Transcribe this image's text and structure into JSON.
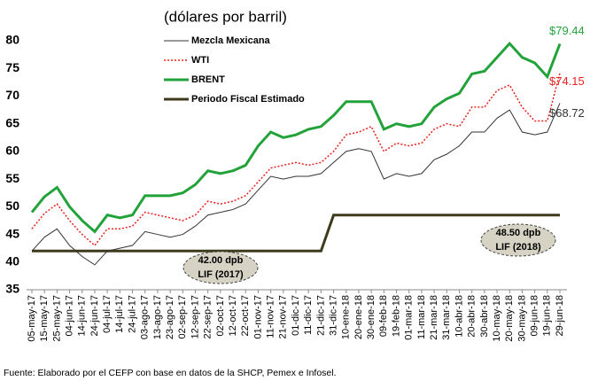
{
  "chart_data": {
    "type": "line",
    "subtitle": "(dólares por barril)",
    "source": "Fuente: Elaborado por el CEFP con base en datos de la SHCP, Pemex e Infosel.",
    "categories": [
      "05-may-17",
      "15-may-17",
      "25-may-17",
      "04-jun-17",
      "14-jun-17",
      "24-jun-17",
      "04-jul-17",
      "14-jul-17",
      "24-jul-17",
      "03-ago-17",
      "13-ago-17",
      "23-ago-17",
      "02-sep-17",
      "12-sep-17",
      "22-sep-17",
      "02-oct-17",
      "12-oct-17",
      "22-oct-17",
      "01-nov-17",
      "11-nov-17",
      "21-nov-17",
      "01-dic-17",
      "11-dic-17",
      "21-dic-17",
      "31-dic-17",
      "10-ene-18",
      "20-ene-18",
      "30-ene-18",
      "09-feb-18",
      "19-feb-18",
      "01-mar-18",
      "11-mar-18",
      "21-mar-18",
      "31-mar-18",
      "10-abr-18",
      "20-abr-18",
      "30-abr-18",
      "10-may-18",
      "20-may-18",
      "30-may-18",
      "09-jun-18",
      "19-jun-18",
      "29-jun-18"
    ],
    "series": [
      {
        "name": "Periodo Fiscal Estimado",
        "color": "#3d3b1c",
        "line_width": 3,
        "dash": "solid",
        "values": [
          42,
          42,
          42,
          42,
          42,
          42,
          42,
          42,
          42,
          42,
          42,
          42,
          42,
          42,
          42,
          42,
          42,
          42,
          42,
          42,
          42,
          42,
          42,
          42,
          48.5,
          48.5,
          48.5,
          48.5,
          48.5,
          48.5,
          48.5,
          48.5,
          48.5,
          48.5,
          48.5,
          48.5,
          48.5,
          48.5,
          48.5,
          48.5,
          48.5,
          48.5,
          48.5
        ]
      },
      {
        "name": "Mezcla Mexicana",
        "color": "#333333",
        "line_width": 1,
        "dash": "solid",
        "values": [
          42,
          44.5,
          46,
          43,
          41,
          39.5,
          42,
          42.5,
          43,
          45.5,
          45,
          44.5,
          45,
          46.5,
          48.5,
          49,
          49.5,
          50.5,
          53,
          55.5,
          55,
          55.5,
          55.5,
          56,
          58,
          60,
          60.5,
          60,
          55,
          56,
          55.5,
          56,
          58.5,
          59.5,
          61,
          63.5,
          63.5,
          66,
          67.5,
          63.5,
          63,
          63.5,
          68.72
        ],
        "value_labels": [
          null,
          null,
          null,
          null,
          null,
          null,
          null,
          null,
          null,
          null,
          null,
          null,
          null,
          null,
          null,
          null,
          null,
          null,
          null,
          null,
          null,
          null,
          null,
          null,
          null,
          null,
          null,
          null,
          null,
          null,
          null,
          null,
          null,
          null,
          null,
          null,
          null,
          null,
          null,
          null,
          null,
          null,
          "$68.72"
        ]
      },
      {
        "name": "WTI",
        "color": "#e8201c",
        "line_width": 1.5,
        "dash": "dotted",
        "values": [
          46,
          48.8,
          50.5,
          47.5,
          45,
          43,
          46,
          46,
          46.5,
          49,
          48.5,
          48,
          47.5,
          48.5,
          51,
          50.5,
          51,
          52,
          54.5,
          57,
          57.5,
          58,
          57.5,
          58,
          60,
          63,
          63.5,
          64.5,
          60,
          61.5,
          61,
          61.5,
          64,
          65,
          64.5,
          68,
          68,
          71,
          72,
          68,
          65.5,
          65.5,
          74.15
        ],
        "value_labels": [
          null,
          null,
          null,
          null,
          null,
          null,
          null,
          null,
          null,
          null,
          null,
          null,
          null,
          null,
          null,
          null,
          null,
          null,
          null,
          null,
          null,
          null,
          null,
          null,
          null,
          null,
          null,
          null,
          null,
          null,
          null,
          null,
          null,
          null,
          null,
          null,
          null,
          null,
          null,
          null,
          null,
          null,
          "$74.15"
        ]
      },
      {
        "name": "BRENT",
        "color": "#22a33a",
        "line_width": 3,
        "dash": "solid",
        "values": [
          49,
          51.8,
          53.5,
          50,
          47.5,
          45.5,
          48.5,
          48,
          48.5,
          52,
          52,
          52,
          52.5,
          54,
          56.5,
          56,
          56.5,
          57.5,
          61,
          63.5,
          62.5,
          63,
          64,
          64.5,
          66.5,
          69,
          69,
          69,
          64,
          65,
          64.5,
          65,
          68,
          69.5,
          70.5,
          74,
          74.5,
          77,
          79.5,
          77,
          76,
          73.5,
          79.44
        ],
        "value_labels": [
          null,
          null,
          null,
          null,
          null,
          null,
          null,
          null,
          null,
          null,
          null,
          null,
          null,
          null,
          null,
          null,
          null,
          null,
          null,
          null,
          null,
          null,
          null,
          null,
          null,
          null,
          null,
          null,
          null,
          null,
          null,
          null,
          null,
          null,
          null,
          null,
          null,
          null,
          null,
          null,
          null,
          null,
          "$79.44"
        ]
      }
    ],
    "legend_order": [
      1,
      2,
      3,
      0
    ],
    "annotations": [
      {
        "lines": [
          "42.00 dpb",
          "LIF (2017)"
        ]
      },
      {
        "lines": [
          "48.50 dpb",
          "LIF (2018)"
        ]
      }
    ],
    "ylim": [
      35,
      80
    ],
    "yticks": [
      35,
      40,
      45,
      50,
      55,
      60,
      65,
      70,
      75,
      80
    ]
  }
}
